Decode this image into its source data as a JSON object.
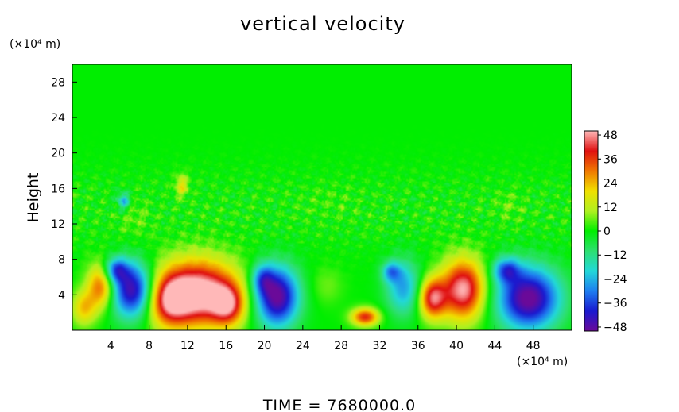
{
  "chart_data": {
    "type": "heatmap",
    "title": "vertical velocity",
    "xlabel": "",
    "ylabel": "Height",
    "x_unit_label": "(×10⁴ m)",
    "y_unit_label": "(×10⁴ m)",
    "footer": "TIME  =  7680000.0",
    "x_range": [
      0,
      52
    ],
    "y_range": [
      0,
      30
    ],
    "x_ticks": [
      4,
      8,
      12,
      16,
      20,
      24,
      28,
      32,
      36,
      40,
      44,
      48
    ],
    "y_ticks": [
      4,
      8,
      12,
      16,
      20,
      24,
      28
    ],
    "colorbar": {
      "range": [
        -50,
        50
      ],
      "ticks": [
        48,
        36,
        24,
        12,
        0,
        -12,
        -24,
        -36,
        -48
      ],
      "colors": [
        "#6a0a99",
        "#1a1ad0",
        "#1e7ef0",
        "#22d8d8",
        "#2de070",
        "#00ee00",
        "#b0f020",
        "#f0e000",
        "#f07800",
        "#e01010",
        "#ffb8b8"
      ]
    },
    "background_value": 0,
    "features": [
      {
        "x": 1.2,
        "y": 2.5,
        "sx": 0.9,
        "sy": 1.4,
        "v": 22
      },
      {
        "x": 3.0,
        "y": 5.0,
        "sx": 1.0,
        "sy": 1.8,
        "v": 34
      },
      {
        "x": 6.3,
        "y": 4.5,
        "sx": 1.6,
        "sy": 2.2,
        "v": -50
      },
      {
        "x": 4.5,
        "y": 6.8,
        "sx": 0.9,
        "sy": 1.0,
        "v": -30
      },
      {
        "x": 13.0,
        "y": 4.2,
        "sx": 3.0,
        "sy": 2.6,
        "v": 58
      },
      {
        "x": 10.0,
        "y": 3.2,
        "sx": 1.5,
        "sy": 2.0,
        "v": 28
      },
      {
        "x": 16.2,
        "y": 2.8,
        "sx": 1.2,
        "sy": 1.6,
        "v": 30
      },
      {
        "x": 21.3,
        "y": 3.8,
        "sx": 1.6,
        "sy": 2.4,
        "v": -52
      },
      {
        "x": 19.8,
        "y": 5.8,
        "sx": 0.8,
        "sy": 1.2,
        "v": -22
      },
      {
        "x": 26.5,
        "y": 5.0,
        "sx": 1.2,
        "sy": 1.5,
        "v": 6
      },
      {
        "x": 30.5,
        "y": 1.5,
        "sx": 1.0,
        "sy": 0.7,
        "v": 38
      },
      {
        "x": 34.5,
        "y": 4.8,
        "sx": 1.3,
        "sy": 2.2,
        "v": -26
      },
      {
        "x": 33.2,
        "y": 6.6,
        "sx": 0.7,
        "sy": 0.8,
        "v": -22
      },
      {
        "x": 37.5,
        "y": 3.6,
        "sx": 1.0,
        "sy": 1.6,
        "v": 42
      },
      {
        "x": 40.7,
        "y": 4.6,
        "sx": 1.6,
        "sy": 2.4,
        "v": 50
      },
      {
        "x": 47.5,
        "y": 3.6,
        "sx": 2.3,
        "sy": 2.5,
        "v": -52
      },
      {
        "x": 45.2,
        "y": 6.8,
        "sx": 1.0,
        "sy": 1.0,
        "v": -28
      },
      {
        "x": 5.3,
        "y": 14.6,
        "sx": 0.5,
        "sy": 0.7,
        "v": -22
      },
      {
        "x": 11.4,
        "y": 16.3,
        "sx": 0.5,
        "sy": 0.9,
        "v": 18
      },
      {
        "x": 6.5,
        "y": 12.5,
        "sx": 1.2,
        "sy": 1.5,
        "v": 5
      },
      {
        "x": 27.0,
        "y": 14.5,
        "sx": 2.0,
        "sy": 1.4,
        "v": 3
      },
      {
        "x": 45.5,
        "y": 14.0,
        "sx": 1.0,
        "sy": 1.3,
        "v": 5
      }
    ]
  }
}
